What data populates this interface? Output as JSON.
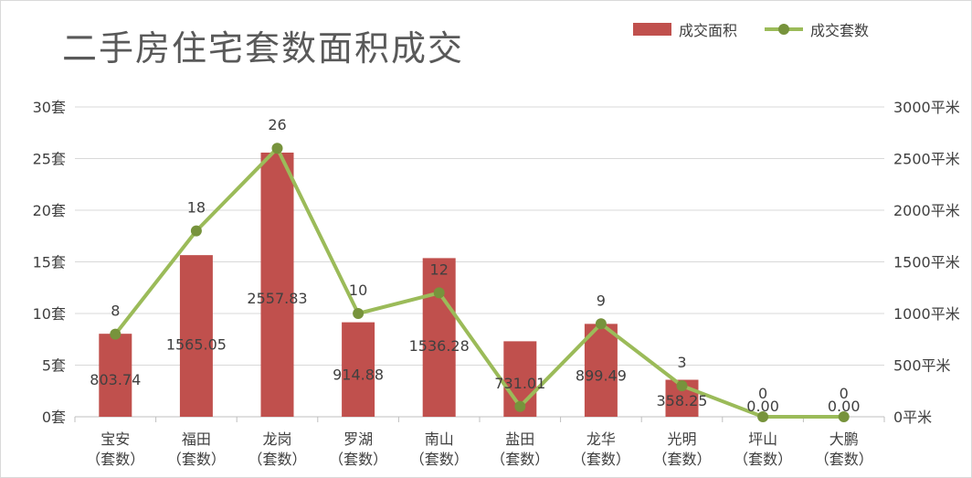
{
  "chart_data": {
    "type": "bar+line",
    "title": "二手房住宅套数面积成交",
    "categories": [
      "宝安",
      "福田",
      "龙岗",
      "罗湖",
      "南山",
      "盐田",
      "龙华",
      "光明",
      "坪山",
      "大鹏"
    ],
    "category_sublabel": "（套数）",
    "series": [
      {
        "name": "成交面积",
        "type": "bar",
        "axis": "right",
        "color": "#c0504d",
        "values": [
          803.74,
          1565.05,
          2557.83,
          914.88,
          1536.28,
          731.01,
          899.49,
          358.25,
          0.0,
          0.0
        ],
        "labels": [
          "803.74",
          "1565.05",
          "2557.83",
          "914.88",
          "1536.28",
          "731.01",
          "899.49",
          "358.25",
          "0.00",
          "0.00"
        ]
      },
      {
        "name": "成交套数",
        "type": "line",
        "axis": "left",
        "color": "#9bbb59",
        "marker_color": "#77933c",
        "values": [
          8,
          18,
          26,
          10,
          12,
          1,
          9,
          3,
          0,
          0
        ],
        "labels": [
          "8",
          "18",
          "26",
          "10",
          "12",
          "",
          "9",
          "3",
          "0",
          "0"
        ]
      }
    ],
    "y_left": {
      "min": 0,
      "max": 30,
      "step": 5,
      "unit": "套",
      "ticks": [
        "0套",
        "5套",
        "10套",
        "15套",
        "20套",
        "25套",
        "30套"
      ]
    },
    "y_right": {
      "min": 0,
      "max": 3000,
      "step": 500,
      "unit": "平米",
      "ticks": [
        "0平米",
        "500平米",
        "1000平米",
        "1500平米",
        "2000平米",
        "2500平米",
        "3000平米"
      ]
    },
    "grid": true,
    "legend_position": "top-right"
  }
}
